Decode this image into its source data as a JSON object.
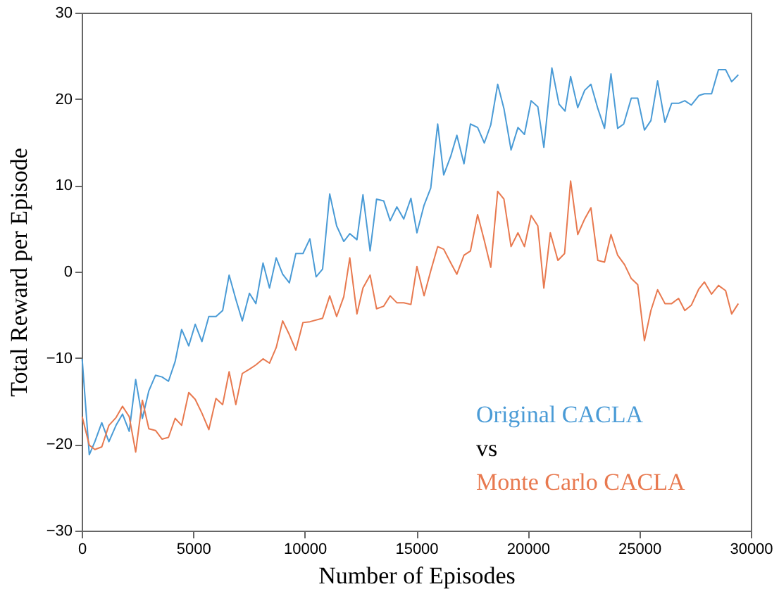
{
  "chart_data": {
    "type": "line",
    "xlabel": "Number of Episodes",
    "ylabel": "Total Reward per Episode",
    "xlim": [
      0,
      30000
    ],
    "xticks": [
      0,
      5000,
      10000,
      15000,
      20000,
      25000,
      30000
    ],
    "ylim": [
      -30,
      30
    ],
    "yticks": [
      -30,
      -20,
      -10,
      0,
      10,
      20,
      30
    ],
    "grid": false,
    "legend": "bottom right",
    "marker": "none",
    "line_style": "solid",
    "annotations": [
      "vs"
    ],
    "series": [
      {
        "name": "Original CACLA",
        "color": "#4a9bd6",
        "x": [
          20,
          340,
          590,
          900,
          1220,
          1540,
          1830,
          2130,
          2420,
          2720,
          3010,
          3310,
          3600,
          3890,
          4190,
          4480,
          4800,
          5090,
          5390,
          5700,
          6020,
          6320,
          6610,
          6910,
          7200,
          7520,
          7810,
          8130,
          8420,
          8720,
          9010,
          9310,
          9600,
          9920,
          10230,
          10510,
          10800,
          11120,
          11430,
          11750,
          12020,
          12340,
          12610,
          12930,
          13220,
          13540,
          13830,
          14130,
          14440,
          14760,
          15030,
          15350,
          15650,
          15960,
          16230,
          16550,
          16820,
          17140,
          17430,
          17750,
          18050,
          18340,
          18650,
          18930,
          19250,
          19560,
          19850,
          20150,
          20450,
          20720,
          21080,
          21400,
          21670,
          21920,
          22240,
          22550,
          22830,
          23140,
          23440,
          23730,
          24030,
          24300,
          24640,
          24930,
          25230,
          25520,
          25820,
          26150,
          26450,
          26760,
          27040,
          27330,
          27670,
          27920,
          28240,
          28550,
          28870,
          29140,
          29440
        ],
        "values": [
          -10.1,
          -21.2,
          -19.7,
          -17.5,
          -19.7,
          -17.8,
          -16.5,
          -18.5,
          -12.5,
          -17.0,
          -13.8,
          -12.0,
          -12.2,
          -12.7,
          -10.4,
          -6.7,
          -8.6,
          -6.1,
          -8.1,
          -5.2,
          -5.2,
          -4.5,
          -0.4,
          -3.2,
          -5.7,
          -2.5,
          -3.7,
          1.0,
          -1.9,
          1.6,
          -0.3,
          -1.3,
          2.1,
          2.1,
          3.8,
          -0.6,
          0.3,
          9.0,
          5.3,
          3.5,
          4.4,
          3.7,
          8.9,
          2.4,
          8.4,
          8.2,
          5.9,
          7.5,
          6.1,
          8.5,
          4.5,
          7.7,
          9.7,
          17.1,
          11.2,
          13.4,
          15.8,
          12.5,
          17.1,
          16.7,
          14.9,
          17.0,
          21.7,
          18.9,
          14.1,
          16.7,
          15.9,
          19.8,
          19.1,
          14.4,
          23.6,
          19.4,
          18.6,
          22.6,
          19.0,
          21.0,
          21.7,
          18.9,
          16.6,
          22.9,
          16.6,
          17.1,
          20.1,
          20.1,
          16.4,
          17.5,
          22.1,
          17.3,
          19.5,
          19.5,
          19.8,
          19.3,
          20.4,
          20.6,
          20.6,
          23.4,
          23.4,
          22.0,
          22.8
        ]
      },
      {
        "name": "Monte Carlo CACLA",
        "color": "#e8794f",
        "x": [
          20,
          340,
          590,
          900,
          1220,
          1540,
          1830,
          2130,
          2420,
          2720,
          3010,
          3310,
          3600,
          3890,
          4190,
          4480,
          4800,
          5090,
          5390,
          5700,
          6020,
          6320,
          6610,
          6910,
          7200,
          7520,
          7810,
          8130,
          8420,
          8720,
          9010,
          9310,
          9600,
          9920,
          10230,
          10800,
          11120,
          11430,
          11750,
          12020,
          12340,
          12610,
          12930,
          13220,
          13540,
          13830,
          14130,
          14440,
          14760,
          15030,
          15350,
          15650,
          15960,
          16230,
          16550,
          16820,
          17140,
          17430,
          17750,
          18050,
          18340,
          18650,
          18930,
          19250,
          19560,
          19850,
          20150,
          20450,
          20720,
          21010,
          21350,
          21650,
          21920,
          22240,
          22550,
          22830,
          23140,
          23440,
          23730,
          24030,
          24340,
          24640,
          24930,
          25230,
          25520,
          25820,
          26150,
          26450,
          26760,
          27040,
          27330,
          27670,
          27920,
          28240,
          28550,
          28870,
          29140,
          29440
        ],
        "values": [
          -16.8,
          -20.1,
          -20.6,
          -20.3,
          -17.8,
          -16.9,
          -15.6,
          -16.8,
          -20.9,
          -14.9,
          -18.2,
          -18.4,
          -19.4,
          -19.2,
          -17.0,
          -17.8,
          -14.0,
          -14.8,
          -16.4,
          -18.3,
          -14.7,
          -15.4,
          -11.6,
          -15.4,
          -11.8,
          -11.3,
          -10.8,
          -10.1,
          -10.6,
          -8.8,
          -5.7,
          -7.3,
          -9.1,
          -5.9,
          -5.8,
          -5.4,
          -2.8,
          -5.2,
          -2.9,
          1.6,
          -4.9,
          -1.9,
          -0.4,
          -4.3,
          -4.0,
          -2.8,
          -3.6,
          -3.6,
          -3.8,
          0.6,
          -2.8,
          0.1,
          2.9,
          2.6,
          1.0,
          -0.3,
          1.9,
          2.4,
          6.6,
          3.6,
          0.5,
          9.3,
          8.4,
          2.9,
          4.5,
          2.9,
          6.5,
          5.3,
          -1.9,
          4.5,
          1.3,
          2.1,
          10.5,
          4.3,
          6.1,
          7.4,
          1.3,
          1.1,
          4.3,
          1.9,
          0.8,
          -0.8,
          -1.5,
          -8.0,
          -4.5,
          -2.1,
          -3.7,
          -3.7,
          -3.1,
          -4.5,
          -3.9,
          -2.0,
          -1.2,
          -2.6,
          -1.6,
          -2.2,
          -4.9,
          -3.7
        ]
      }
    ]
  }
}
